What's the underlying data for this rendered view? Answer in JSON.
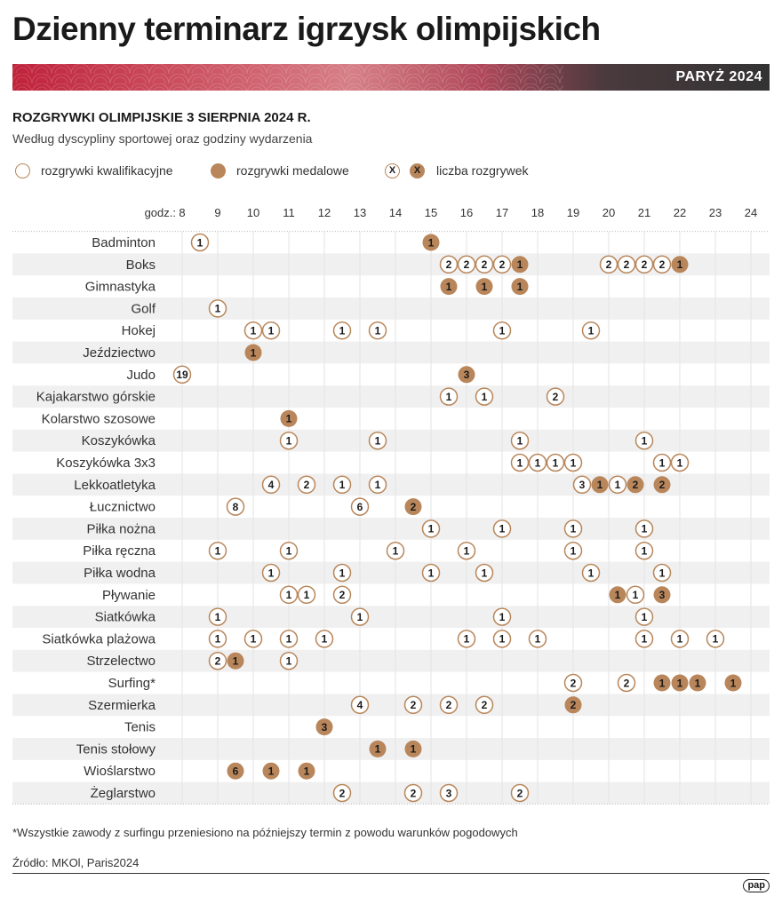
{
  "header": {
    "title": "Dzienny terminarz igrzysk olimpijskich",
    "band_label": "PARYŻ 2024",
    "subtitle": "ROZGRYWKI OLIMPIJSKIE 3 SIERPNIA 2024 R.",
    "description": "Według dyscypliny sportowej oraz godziny wydarzenia"
  },
  "legend": {
    "qualifying": "rozgrywki kwalifikacyjne",
    "medal": "rozgrywki medalowe",
    "count_symbol": "X",
    "count": "liczba rozgrywek"
  },
  "colors": {
    "medal_fill": "#b8865a",
    "qualifying_stroke": "#b8865a",
    "band_dark": "#3a3a3a",
    "band_red": "#c0223a",
    "row_stripe": "#f0f0f0"
  },
  "chart_data": {
    "type": "timeline-dot",
    "x_prefix_label": "godz.:",
    "x_ticks": [
      8,
      9,
      10,
      11,
      12,
      13,
      14,
      15,
      16,
      17,
      18,
      19,
      20,
      21,
      22,
      23,
      24
    ],
    "xlim": [
      8,
      24.5
    ],
    "disciplines": [
      {
        "name": "Badminton",
        "events": [
          {
            "t": 8.5,
            "n": 1,
            "medal": false
          },
          {
            "t": 15,
            "n": 1,
            "medal": true
          }
        ]
      },
      {
        "name": "Boks",
        "events": [
          {
            "t": 15.5,
            "n": 2,
            "medal": false
          },
          {
            "t": 16,
            "n": 2,
            "medal": false
          },
          {
            "t": 16.5,
            "n": 2,
            "medal": false
          },
          {
            "t": 17,
            "n": 2,
            "medal": false
          },
          {
            "t": 17.5,
            "n": 1,
            "medal": true
          },
          {
            "t": 20,
            "n": 2,
            "medal": false
          },
          {
            "t": 20.5,
            "n": 2,
            "medal": false
          },
          {
            "t": 21,
            "n": 2,
            "medal": false
          },
          {
            "t": 21.5,
            "n": 2,
            "medal": false
          },
          {
            "t": 22,
            "n": 1,
            "medal": true
          }
        ]
      },
      {
        "name": "Gimnastyka",
        "events": [
          {
            "t": 15.5,
            "n": 1,
            "medal": true
          },
          {
            "t": 16.5,
            "n": 1,
            "medal": true
          },
          {
            "t": 17.5,
            "n": 1,
            "medal": true
          }
        ]
      },
      {
        "name": "Golf",
        "events": [
          {
            "t": 9,
            "n": 1,
            "medal": false
          }
        ]
      },
      {
        "name": "Hokej",
        "events": [
          {
            "t": 10,
            "n": 1,
            "medal": false
          },
          {
            "t": 10.5,
            "n": 1,
            "medal": false
          },
          {
            "t": 12.5,
            "n": 1,
            "medal": false
          },
          {
            "t": 13.5,
            "n": 1,
            "medal": false
          },
          {
            "t": 17,
            "n": 1,
            "medal": false
          },
          {
            "t": 19.5,
            "n": 1,
            "medal": false
          }
        ]
      },
      {
        "name": "Jeździectwo",
        "events": [
          {
            "t": 10,
            "n": 1,
            "medal": true
          }
        ]
      },
      {
        "name": "Judo",
        "events": [
          {
            "t": 8,
            "n": 19,
            "medal": false
          },
          {
            "t": 16,
            "n": 3,
            "medal": true
          }
        ]
      },
      {
        "name": "Kajakarstwo górskie",
        "events": [
          {
            "t": 15.5,
            "n": 1,
            "medal": false
          },
          {
            "t": 16.5,
            "n": 1,
            "medal": false
          },
          {
            "t": 18.5,
            "n": 2,
            "medal": false
          }
        ]
      },
      {
        "name": "Kolarstwo szosowe",
        "events": [
          {
            "t": 11,
            "n": 1,
            "medal": true
          }
        ]
      },
      {
        "name": "Koszykówka",
        "events": [
          {
            "t": 11,
            "n": 1,
            "medal": false
          },
          {
            "t": 13.5,
            "n": 1,
            "medal": false
          },
          {
            "t": 17.5,
            "n": 1,
            "medal": false
          },
          {
            "t": 21,
            "n": 1,
            "medal": false
          }
        ]
      },
      {
        "name": "Koszykówka 3x3",
        "events": [
          {
            "t": 17.5,
            "n": 1,
            "medal": false
          },
          {
            "t": 18,
            "n": 1,
            "medal": false
          },
          {
            "t": 18.5,
            "n": 1,
            "medal": false
          },
          {
            "t": 19,
            "n": 1,
            "medal": false
          },
          {
            "t": 21.5,
            "n": 1,
            "medal": false
          },
          {
            "t": 22,
            "n": 1,
            "medal": false
          }
        ]
      },
      {
        "name": "Lekkoatletyka",
        "events": [
          {
            "t": 10.5,
            "n": 4,
            "medal": false
          },
          {
            "t": 11.5,
            "n": 2,
            "medal": false
          },
          {
            "t": 12.5,
            "n": 1,
            "medal": false
          },
          {
            "t": 13.5,
            "n": 1,
            "medal": false
          },
          {
            "t": 19.25,
            "n": 3,
            "medal": false
          },
          {
            "t": 19.75,
            "n": 1,
            "medal": true
          },
          {
            "t": 20.25,
            "n": 1,
            "medal": false
          },
          {
            "t": 20.75,
            "n": 2,
            "medal": true
          },
          {
            "t": 21.5,
            "n": 2,
            "medal": true
          }
        ]
      },
      {
        "name": "Łucznictwo",
        "events": [
          {
            "t": 9.5,
            "n": 8,
            "medal": false
          },
          {
            "t": 13,
            "n": 6,
            "medal": false
          },
          {
            "t": 14.5,
            "n": 2,
            "medal": true
          }
        ]
      },
      {
        "name": "Piłka nożna",
        "events": [
          {
            "t": 15,
            "n": 1,
            "medal": false
          },
          {
            "t": 17,
            "n": 1,
            "medal": false
          },
          {
            "t": 19,
            "n": 1,
            "medal": false
          },
          {
            "t": 21,
            "n": 1,
            "medal": false
          }
        ]
      },
      {
        "name": "Piłka ręczna",
        "events": [
          {
            "t": 9,
            "n": 1,
            "medal": false
          },
          {
            "t": 11,
            "n": 1,
            "medal": false
          },
          {
            "t": 14,
            "n": 1,
            "medal": false
          },
          {
            "t": 16,
            "n": 1,
            "medal": false
          },
          {
            "t": 19,
            "n": 1,
            "medal": false
          },
          {
            "t": 21,
            "n": 1,
            "medal": false
          }
        ]
      },
      {
        "name": "Piłka wodna",
        "events": [
          {
            "t": 10.5,
            "n": 1,
            "medal": false
          },
          {
            "t": 12.5,
            "n": 1,
            "medal": false
          },
          {
            "t": 15,
            "n": 1,
            "medal": false
          },
          {
            "t": 16.5,
            "n": 1,
            "medal": false
          },
          {
            "t": 19.5,
            "n": 1,
            "medal": false
          },
          {
            "t": 21.5,
            "n": 1,
            "medal": false
          }
        ]
      },
      {
        "name": "Pływanie",
        "events": [
          {
            "t": 11,
            "n": 1,
            "medal": false
          },
          {
            "t": 11.5,
            "n": 1,
            "medal": false
          },
          {
            "t": 12.5,
            "n": 2,
            "medal": false
          },
          {
            "t": 20.25,
            "n": 1,
            "medal": true
          },
          {
            "t": 20.75,
            "n": 1,
            "medal": false
          },
          {
            "t": 21.5,
            "n": 3,
            "medal": true
          }
        ]
      },
      {
        "name": "Siatkówka",
        "events": [
          {
            "t": 9,
            "n": 1,
            "medal": false
          },
          {
            "t": 13,
            "n": 1,
            "medal": false
          },
          {
            "t": 17,
            "n": 1,
            "medal": false
          },
          {
            "t": 21,
            "n": 1,
            "medal": false
          }
        ]
      },
      {
        "name": "Siatkówka plażowa",
        "events": [
          {
            "t": 9,
            "n": 1,
            "medal": false
          },
          {
            "t": 10,
            "n": 1,
            "medal": false
          },
          {
            "t": 11,
            "n": 1,
            "medal": false
          },
          {
            "t": 12,
            "n": 1,
            "medal": false
          },
          {
            "t": 16,
            "n": 1,
            "medal": false
          },
          {
            "t": 17,
            "n": 1,
            "medal": false
          },
          {
            "t": 18,
            "n": 1,
            "medal": false
          },
          {
            "t": 21,
            "n": 1,
            "medal": false
          },
          {
            "t": 22,
            "n": 1,
            "medal": false
          },
          {
            "t": 23,
            "n": 1,
            "medal": false
          }
        ]
      },
      {
        "name": "Strzelectwo",
        "events": [
          {
            "t": 9,
            "n": 2,
            "medal": false
          },
          {
            "t": 9.5,
            "n": 1,
            "medal": true
          },
          {
            "t": 11,
            "n": 1,
            "medal": false
          }
        ]
      },
      {
        "name": "Surfing*",
        "events": [
          {
            "t": 19,
            "n": 2,
            "medal": false
          },
          {
            "t": 20.5,
            "n": 2,
            "medal": false
          },
          {
            "t": 21.5,
            "n": 1,
            "medal": true
          },
          {
            "t": 22,
            "n": 1,
            "medal": true
          },
          {
            "t": 22.5,
            "n": 1,
            "medal": true
          },
          {
            "t": 23.5,
            "n": 1,
            "medal": true
          }
        ]
      },
      {
        "name": "Szermierka",
        "events": [
          {
            "t": 13,
            "n": 4,
            "medal": false
          },
          {
            "t": 14.5,
            "n": 2,
            "medal": false
          },
          {
            "t": 15.5,
            "n": 2,
            "medal": false
          },
          {
            "t": 16.5,
            "n": 2,
            "medal": false
          },
          {
            "t": 19,
            "n": 2,
            "medal": true
          }
        ]
      },
      {
        "name": "Tenis",
        "events": [
          {
            "t": 12,
            "n": 3,
            "medal": true
          }
        ]
      },
      {
        "name": "Tenis stołowy",
        "events": [
          {
            "t": 13.5,
            "n": 1,
            "medal": true
          },
          {
            "t": 14.5,
            "n": 1,
            "medal": true
          }
        ]
      },
      {
        "name": "Wioślarstwo",
        "events": [
          {
            "t": 9.5,
            "n": 6,
            "medal": true
          },
          {
            "t": 10.5,
            "n": 1,
            "medal": true
          },
          {
            "t": 11.5,
            "n": 1,
            "medal": true
          }
        ]
      },
      {
        "name": "Żeglarstwo",
        "events": [
          {
            "t": 12.5,
            "n": 2,
            "medal": false
          },
          {
            "t": 14.5,
            "n": 2,
            "medal": false
          },
          {
            "t": 15.5,
            "n": 3,
            "medal": false
          },
          {
            "t": 17.5,
            "n": 2,
            "medal": false
          }
        ]
      }
    ]
  },
  "footer": {
    "footnote": "*Wszystkie zawody z surfingu przeniesiono na późniejszy termin z powodu warunków pogodowych",
    "source": "Źródło: MKOl, Paris2024",
    "logo": "pap"
  }
}
